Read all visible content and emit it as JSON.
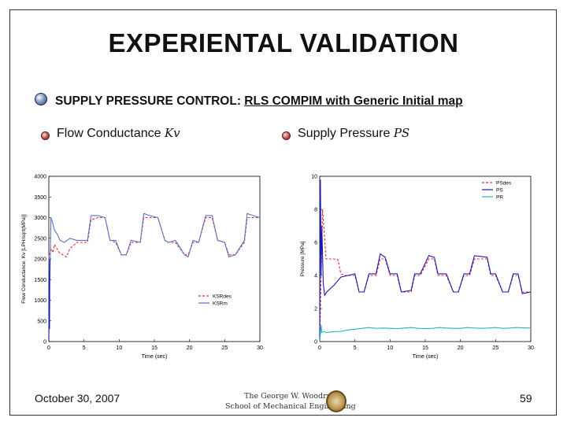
{
  "slide": {
    "title": "EXPERIENTAL VALIDATION",
    "bullet_prefix": "SUPPLY PRESSURE CONTROL: ",
    "bullet_underlined": "RLS COMPIM with Generic Initial map",
    "sub_left_text": "Flow Conductance ",
    "sub_left_symbol": "Kv",
    "sub_right_text": "Supply Pressure ",
    "sub_right_symbol": "PS",
    "footer_date": "October 30, 2007",
    "page_number": "59",
    "logo_line1": "The George W. Woodruff",
    "logo_line2": "School of Mechanical Engineering"
  },
  "colors": {
    "red": "#e03030",
    "blue": "#1a1ab0",
    "cyan": "#20b8b8",
    "thin_blue": "#6070c8"
  },
  "chart_data": [
    {
      "type": "line",
      "xlabel": "Time (sec)",
      "ylabel": "Flow Conductance, Kv [LPH/sqrt(MPa)]",
      "xlim": [
        0,
        30
      ],
      "ylim": [
        0,
        4000
      ],
      "xticks": [
        0,
        5,
        10,
        15,
        20,
        25,
        30
      ],
      "yticks": [
        0,
        500,
        1000,
        1500,
        2000,
        2500,
        3000,
        3500,
        4000
      ],
      "legend": "bottom-right",
      "series": [
        {
          "name": "KSRdes",
          "style": "dashed",
          "color": "#e03030",
          "x": [
            0,
            0.3,
            0.6,
            0.8,
            1.5,
            2.5,
            3.0,
            4.0,
            5.5,
            6.0,
            7.0,
            8.0,
            8.7,
            9.5,
            10.3,
            11.0,
            11.7,
            13.0,
            13.5,
            14.3,
            15.5,
            16.5,
            17.0,
            18.0,
            19.3,
            19.8,
            20.5,
            21.3,
            22.3,
            23.2,
            24.0,
            25.0,
            25.6,
            26.5,
            27.8,
            28.2,
            29.0,
            30.0
          ],
          "y": [
            2000,
            2250,
            2150,
            2350,
            2150,
            2050,
            2250,
            2400,
            2400,
            2950,
            3000,
            3000,
            2450,
            2400,
            2100,
            2100,
            2400,
            2400,
            3000,
            3000,
            3000,
            2450,
            2400,
            2400,
            2100,
            2100,
            2400,
            2400,
            3000,
            3000,
            2450,
            2400,
            2100,
            2100,
            2400,
            3000,
            3000,
            3000
          ]
        },
        {
          "name": "KSRm",
          "style": "solid",
          "color": "#6070c8",
          "x": [
            0,
            0.15,
            0.3,
            0.5,
            0.8,
            1.2,
            1.6,
            2.2,
            3.0,
            4.0,
            5.5,
            6.0,
            7.0,
            8.0,
            8.7,
            9.5,
            10.3,
            11.0,
            11.7,
            13.0,
            13.5,
            14.3,
            15.5,
            16.5,
            17.0,
            18.0,
            19.3,
            19.8,
            20.5,
            21.3,
            22.3,
            23.2,
            24.0,
            25.0,
            25.6,
            26.5,
            27.8,
            28.2,
            29.0,
            30.0
          ],
          "y": [
            2100,
            1500,
            3000,
            2900,
            2700,
            2600,
            2450,
            2400,
            2500,
            2450,
            2450,
            3050,
            3050,
            3000,
            2450,
            2450,
            2100,
            2100,
            2450,
            2400,
            3100,
            3050,
            3000,
            2450,
            2400,
            2450,
            2100,
            2050,
            2450,
            2400,
            3050,
            3050,
            2450,
            2400,
            2050,
            2100,
            2450,
            3100,
            3050,
            3000
          ]
        },
        {
          "name": "",
          "style": "solid",
          "color": "#1a1ab0",
          "x": [
            0,
            0.05,
            0.1,
            0.15
          ],
          "y": [
            0,
            1500,
            300,
            2000
          ]
        }
      ]
    },
    {
      "type": "line",
      "xlabel": "Time (sec)",
      "ylabel": "Pressure [MPa]",
      "xlim": [
        0,
        30
      ],
      "ylim": [
        0,
        10
      ],
      "xticks": [
        0,
        5,
        10,
        15,
        20,
        25,
        30
      ],
      "yticks": [
        0,
        2,
        4,
        6,
        8,
        10
      ],
      "legend": "top-right",
      "series": [
        {
          "name": "PSdes",
          "style": "dashed",
          "color": "#e03030",
          "x": [
            0,
            0.4,
            0.9,
            2.0,
            2.6,
            3.0,
            3.6,
            5.0,
            5.6,
            6.3,
            7.0,
            8.0,
            8.6,
            9.3,
            10.0,
            11.0,
            11.6,
            13.0,
            13.5,
            14.3,
            15.5,
            16.3,
            16.8,
            18.0,
            19.0,
            19.7,
            20.5,
            21.3,
            22.0,
            23.8,
            24.3,
            25.0,
            26.0,
            26.8,
            27.5,
            28.2,
            28.8,
            30.0
          ],
          "y": [
            0,
            8,
            5,
            5,
            4.95,
            4.1,
            4.0,
            4.0,
            3.0,
            3.0,
            4.0,
            4.0,
            5.0,
            5.0,
            4.0,
            4.0,
            3.0,
            3.0,
            4.0,
            4.0,
            5.0,
            5.0,
            4.0,
            4.0,
            3.0,
            3.0,
            4.0,
            4.0,
            5.0,
            5.0,
            4.0,
            4.0,
            3.0,
            3.0,
            4.0,
            4.0,
            3.0,
            3.0
          ]
        },
        {
          "name": "PS",
          "style": "solid",
          "color": "#1a1ab0",
          "x": [
            0,
            0.1,
            0.2,
            0.3,
            0.5,
            0.7,
            1.0,
            2.0,
            3.0,
            4.0,
            5.0,
            5.6,
            6.3,
            7.0,
            8.0,
            8.6,
            9.3,
            10.0,
            11.0,
            11.6,
            13.0,
            13.5,
            14.3,
            15.5,
            16.3,
            16.8,
            18.0,
            19.0,
            19.7,
            20.5,
            21.3,
            22.0,
            23.8,
            24.3,
            25.0,
            26.0,
            26.8,
            27.5,
            28.2,
            28.8,
            30.0
          ],
          "y": [
            0,
            9.8,
            4.0,
            7.0,
            3.5,
            2.8,
            3.0,
            3.4,
            3.9,
            4.0,
            4.1,
            3.0,
            3.0,
            4.1,
            4.1,
            5.3,
            5.1,
            4.1,
            4.1,
            3.0,
            3.1,
            4.1,
            4.1,
            5.2,
            5.1,
            4.1,
            4.1,
            3.0,
            3.0,
            4.1,
            4.1,
            5.2,
            5.1,
            4.1,
            4.1,
            3.0,
            3.0,
            4.1,
            4.1,
            2.9,
            3.0
          ]
        },
        {
          "name": "PR",
          "style": "solid",
          "color": "#20b8b8",
          "x": [
            0,
            0.2,
            0.3,
            0.5,
            1.0,
            2.0,
            3.0,
            4.0,
            5.0,
            6.0,
            7.0,
            8.0,
            9.0,
            10.0,
            11.0,
            12.0,
            13.0,
            14.0,
            15.0,
            16.0,
            17.0,
            18.0,
            19.0,
            20.0,
            21.0,
            22.0,
            23.0,
            24.0,
            25.0,
            26.0,
            27.0,
            28.0,
            29.0,
            30.0
          ],
          "y": [
            0,
            1.0,
            0.55,
            0.6,
            0.55,
            0.6,
            0.62,
            0.7,
            0.75,
            0.8,
            0.85,
            0.8,
            0.82,
            0.8,
            0.78,
            0.82,
            0.85,
            0.8,
            0.78,
            0.8,
            0.85,
            0.82,
            0.8,
            0.8,
            0.85,
            0.82,
            0.8,
            0.82,
            0.85,
            0.8,
            0.82,
            0.85,
            0.83,
            0.82
          ]
        }
      ]
    }
  ]
}
